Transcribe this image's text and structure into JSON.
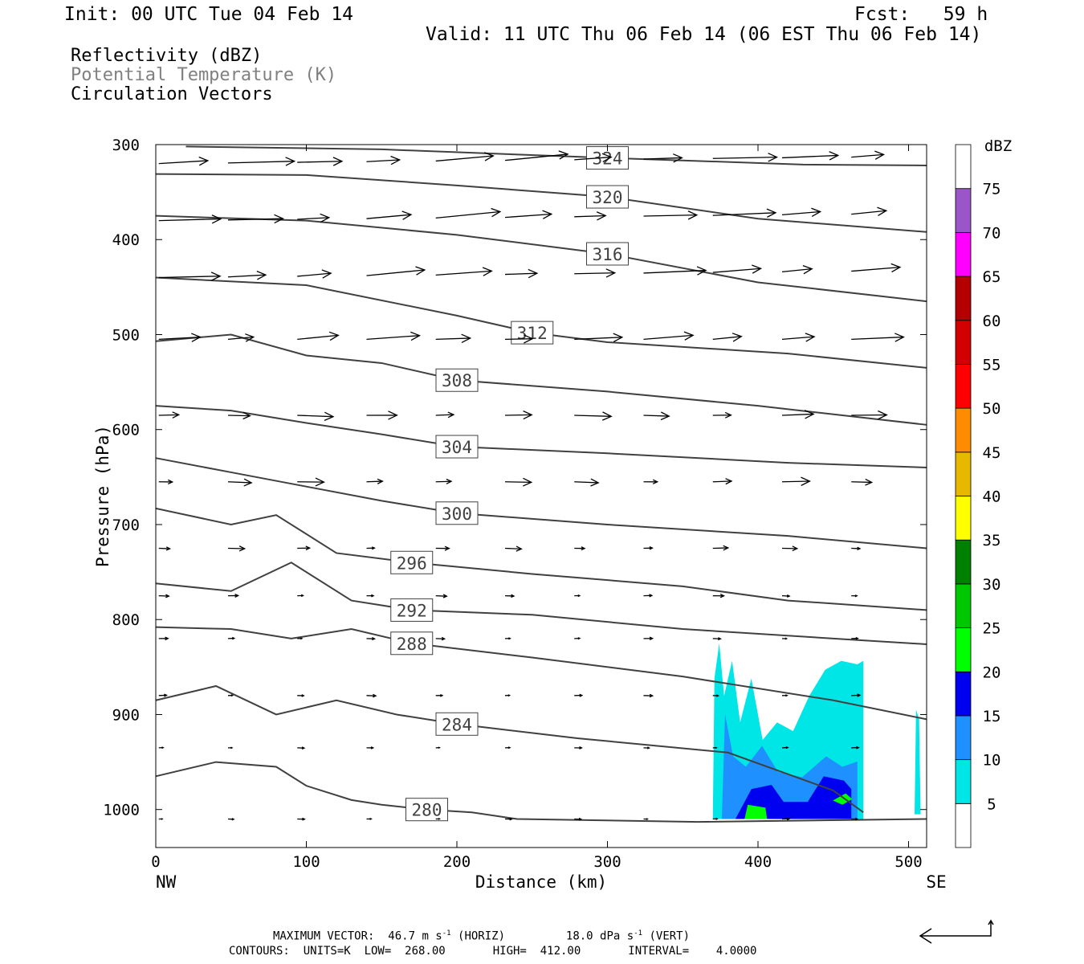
{
  "header": {
    "init": "Init: 00 UTC Tue 04 Feb 14",
    "fcst": "Fcst:   59 h",
    "valid": "Valid: 11 UTC Thu 06 Feb 14 (06 EST Thu 06 Feb 14)"
  },
  "fields": [
    "Reflectivity (dBZ)",
    "Potential Temperature (K)",
    "Circulation Vectors"
  ],
  "footer": {
    "max_vector_label": "MAXIMUM VECTOR:",
    "horiz": "46.7 m s",
    "horiz_tag": "(HORIZ)",
    "vert": "18.0 dPa s",
    "vert_tag": "(VERT)",
    "exp": "-1",
    "contours": "CONTOURS:  UNITS=K  LOW=  268.00       HIGH=  412.00       INTERVAL=    4.0000"
  },
  "colors": {
    "contour": "#404040",
    "vector": "#000000",
    "dbz": [
      "#ffffff",
      "#00e5e5",
      "#1e90ff",
      "#0000f0",
      "#00ff00",
      "#00c800",
      "#008000",
      "#ffff00",
      "#e6b800",
      "#ff8c00",
      "#ff0000",
      "#d20000",
      "#b40000",
      "#ff00ff",
      "#9a55c8",
      "#ffffff"
    ]
  },
  "chart_data": {
    "type": "cross-section",
    "xlabel": "Distance (km)",
    "ylabel": "Pressure (hPa)",
    "xlim": [
      0,
      512
    ],
    "ylim": [
      1040,
      300
    ],
    "x_ticks": [
      0,
      100,
      200,
      300,
      400,
      500
    ],
    "y_ticks": [
      300,
      400,
      500,
      600,
      700,
      800,
      900,
      1000
    ],
    "x_end_labels": {
      "left": "NW",
      "right": "SE"
    },
    "colorbar": {
      "title": "dBZ",
      "levels": [
        5,
        10,
        15,
        20,
        25,
        30,
        35,
        40,
        45,
        50,
        55,
        60,
        65,
        70,
        75
      ]
    },
    "isentropes": [
      {
        "theta": 324,
        "points": [
          [
            20,
            302
          ],
          [
            150,
            305
          ],
          [
            300,
            314
          ],
          [
            430,
            321
          ],
          [
            512,
            322
          ]
        ]
      },
      {
        "theta": 320,
        "points": [
          [
            0,
            331
          ],
          [
            100,
            332
          ],
          [
            200,
            343
          ],
          [
            300,
            355
          ],
          [
            400,
            378
          ],
          [
            512,
            392
          ]
        ]
      },
      {
        "theta": 316,
        "points": [
          [
            0,
            375
          ],
          [
            100,
            380
          ],
          [
            200,
            395
          ],
          [
            300,
            415
          ],
          [
            400,
            445
          ],
          [
            512,
            465
          ]
        ]
      },
      {
        "theta": 312,
        "points": [
          [
            0,
            440
          ],
          [
            100,
            448
          ],
          [
            200,
            480
          ],
          [
            250,
            498
          ],
          [
            300,
            508
          ],
          [
            420,
            520
          ],
          [
            512,
            535
          ]
        ]
      },
      {
        "theta": 308,
        "points": [
          [
            0,
            507
          ],
          [
            50,
            500
          ],
          [
            100,
            522
          ],
          [
            150,
            530
          ],
          [
            200,
            548
          ],
          [
            300,
            560
          ],
          [
            400,
            575
          ],
          [
            512,
            595
          ]
        ]
      },
      {
        "theta": 304,
        "points": [
          [
            0,
            575
          ],
          [
            50,
            580
          ],
          [
            100,
            593
          ],
          [
            150,
            605
          ],
          [
            200,
            618
          ],
          [
            300,
            625
          ],
          [
            420,
            635
          ],
          [
            512,
            640
          ]
        ]
      },
      {
        "theta": 300,
        "points": [
          [
            0,
            630
          ],
          [
            50,
            645
          ],
          [
            100,
            660
          ],
          [
            150,
            675
          ],
          [
            200,
            688
          ],
          [
            300,
            700
          ],
          [
            420,
            712
          ],
          [
            512,
            725
          ]
        ]
      },
      {
        "theta": 296,
        "points": [
          [
            0,
            683
          ],
          [
            50,
            700
          ],
          [
            80,
            690
          ],
          [
            120,
            730
          ],
          [
            170,
            740
          ],
          [
            250,
            752
          ],
          [
            350,
            765
          ],
          [
            420,
            780
          ],
          [
            512,
            790
          ]
        ]
      },
      {
        "theta": 292,
        "points": [
          [
            0,
            762
          ],
          [
            50,
            770
          ],
          [
            90,
            740
          ],
          [
            130,
            780
          ],
          [
            170,
            790
          ],
          [
            250,
            795
          ],
          [
            350,
            810
          ],
          [
            450,
            820
          ],
          [
            512,
            826
          ]
        ]
      },
      {
        "theta": 288,
        "points": [
          [
            0,
            808
          ],
          [
            50,
            810
          ],
          [
            90,
            820
          ],
          [
            130,
            810
          ],
          [
            170,
            825
          ],
          [
            250,
            840
          ],
          [
            350,
            860
          ],
          [
            450,
            885
          ],
          [
            512,
            905
          ]
        ]
      },
      {
        "theta": 284,
        "points": [
          [
            0,
            885
          ],
          [
            40,
            870
          ],
          [
            80,
            900
          ],
          [
            120,
            885
          ],
          [
            160,
            900
          ],
          [
            200,
            910
          ],
          [
            280,
            925
          ],
          [
            380,
            940
          ],
          [
            450,
            980
          ],
          [
            470,
            1003
          ]
        ]
      },
      {
        "theta": 280,
        "points": [
          [
            0,
            965
          ],
          [
            40,
            950
          ],
          [
            80,
            955
          ],
          [
            100,
            975
          ],
          [
            130,
            990
          ],
          [
            150,
            995
          ],
          [
            180,
            1000
          ],
          [
            210,
            1003
          ],
          [
            240,
            1010
          ],
          [
            360,
            1013
          ],
          [
            512,
            1010
          ]
        ]
      }
    ],
    "reflectivity_regions": [
      {
        "dbz": 5,
        "x_range": [
          370,
          470
        ],
        "p_range": [
          825,
          1010
        ]
      },
      {
        "dbz": 10,
        "x_range": [
          376,
          466
        ],
        "p_range": [
          900,
          1010
        ]
      },
      {
        "dbz": 15,
        "x_range": [
          385,
          462
        ],
        "p_range": [
          965,
          1010
        ]
      },
      {
        "dbz": 20,
        "x_range": [
          390,
          460
        ],
        "p_range": [
          980,
          1010
        ]
      }
    ],
    "max_vector": {
      "horiz_m_s": 46.7,
      "vert_dPa_s": 18.0
    },
    "contour_low_K": 268.0,
    "contour_high_K": 412.0,
    "contour_interval_K": 4.0
  }
}
